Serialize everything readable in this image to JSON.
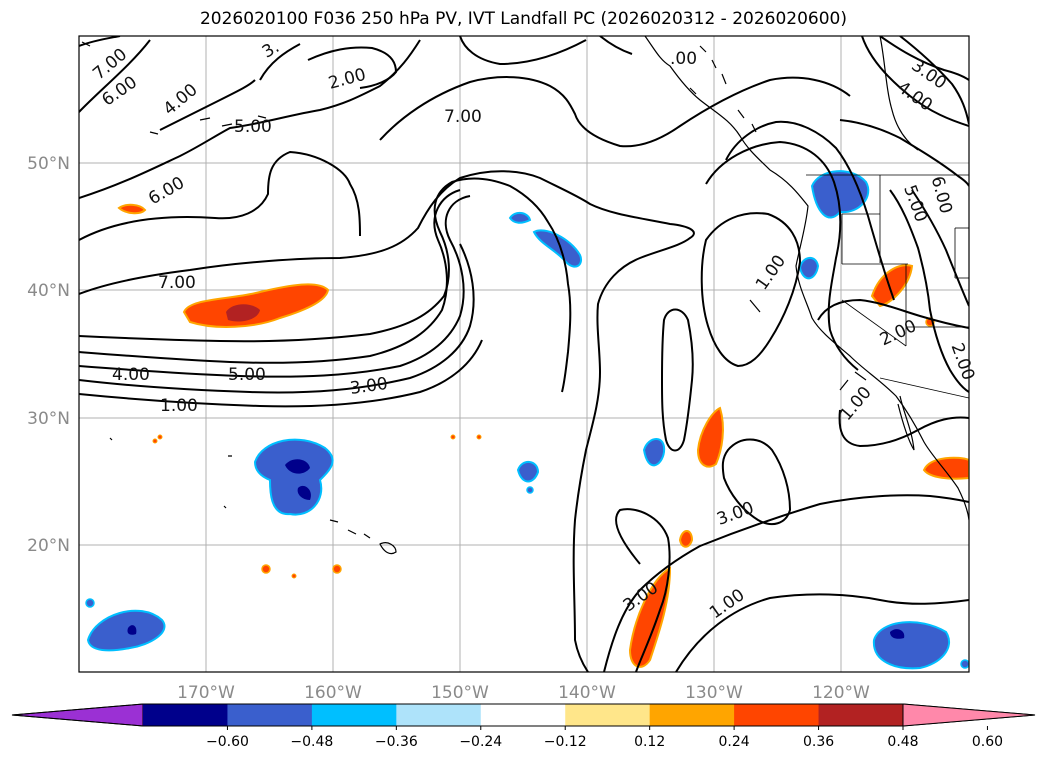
{
  "title": "2026020100 F036 250 hPa PV, IVT Landfall PC (2026020312 - 2026020600)",
  "axes": {
    "lon_ticks": [
      "170°W",
      "160°W",
      "150°W",
      "140°W",
      "130°W",
      "120°W"
    ],
    "lat_ticks": [
      "50°N",
      "40°N",
      "30°N",
      "20°N"
    ]
  },
  "contour_labels": [
    "7.00",
    "6.00",
    "4.00",
    "3.",
    "2.00",
    "5.00",
    "7.00",
    "6.00",
    "7.00",
    "4.00",
    "5.00",
    "3.00",
    "1.00",
    "1.00",
    "3.00",
    "3.00",
    "1.00",
    "3.00",
    "4.00",
    "5.00",
    "6.00",
    "1.00",
    "2.00",
    "2.00",
    ".00"
  ],
  "colorbar": {
    "ticks": [
      "−0.60",
      "−0.48",
      "−0.36",
      "−0.24",
      "−0.12",
      "0.12",
      "0.24",
      "0.36",
      "0.48",
      "0.60"
    ],
    "colors": [
      "#9b30d4",
      "#00008b",
      "#3a5fcd",
      "#00bfff",
      "#aee3fa",
      "#ffffff",
      "#ffe68a",
      "#ffa500",
      "#ff4500",
      "#b22222",
      "#ff88aa"
    ]
  },
  "chart_data": {
    "type": "map",
    "title": "2026020100 F036 250 hPa PV, IVT Landfall PC (2026020312 - 2026020600)",
    "region": {
      "lon_min": -180,
      "lon_max": -110,
      "lat_min": 10,
      "lat_max": 60
    },
    "contour_field": "250 hPa PV",
    "contour_levels": [
      1.0,
      2.0,
      3.0,
      4.0,
      5.0,
      6.0,
      7.0
    ],
    "shaded_field": "IVT Landfall PC",
    "colorbar_levels": [
      -0.6,
      -0.48,
      -0.36,
      -0.24,
      -0.12,
      0.12,
      0.24,
      0.36,
      0.48,
      0.6
    ]
  }
}
